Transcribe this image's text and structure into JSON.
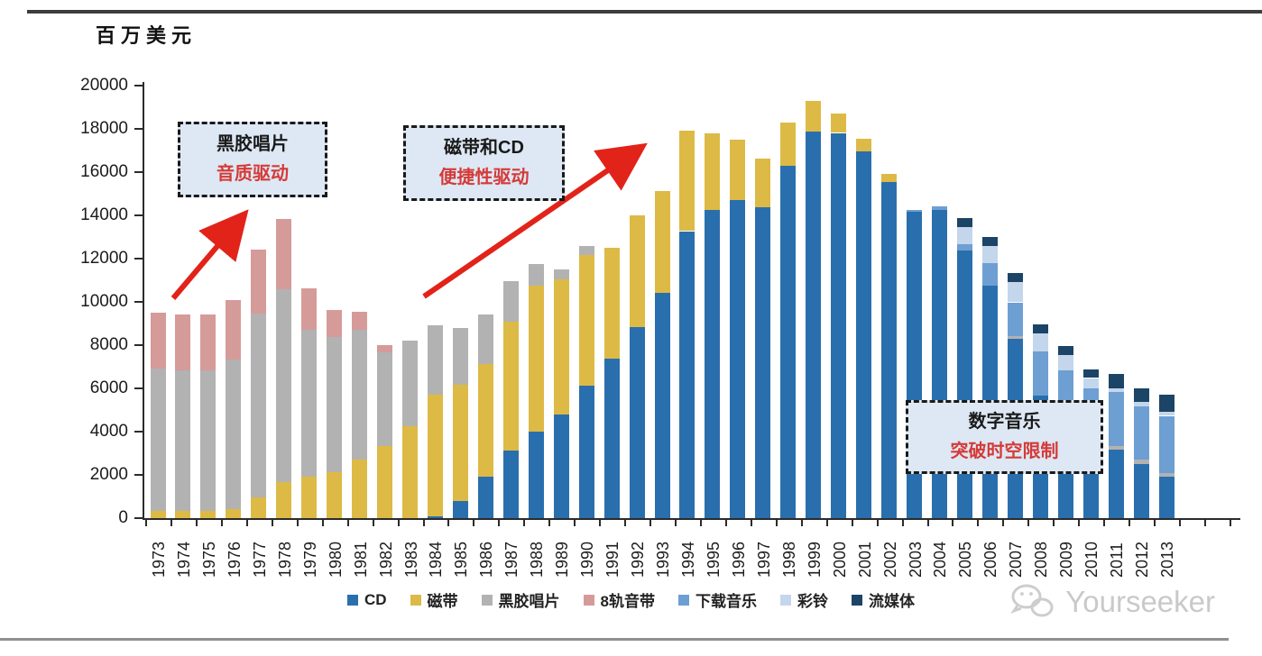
{
  "chart": {
    "unit_label": "百万美元",
    "annotations": [
      {
        "line1": "黑胶唱片",
        "line2": "音质驱动"
      },
      {
        "line1": "磁带和CD",
        "line2": "便捷性驱动"
      },
      {
        "line1": "数字音乐",
        "line2": "突破时空限制"
      }
    ],
    "watermark": "Yourseeker",
    "accent_red": "#e2231a",
    "annotation_bg": "#dde8f4"
  },
  "chart_data": {
    "type": "bar",
    "stacked": true,
    "title": "百万美元",
    "ylabel": "百万美元",
    "xlabel": "",
    "grid": false,
    "legend_position": "bottom",
    "ylim": [
      0,
      20000
    ],
    "ytick_step": 2000,
    "yticks": [
      0,
      2000,
      4000,
      6000,
      8000,
      10000,
      12000,
      14000,
      16000,
      18000,
      20000
    ],
    "categories": [
      1973,
      1974,
      1975,
      1976,
      1977,
      1978,
      1979,
      1980,
      1981,
      1982,
      1983,
      1984,
      1985,
      1986,
      1987,
      1988,
      1989,
      1990,
      1991,
      1992,
      1993,
      1994,
      1995,
      1996,
      1997,
      1998,
      1999,
      2000,
      2001,
      2002,
      2003,
      2004,
      2005,
      2006,
      2007,
      2008,
      2009,
      2010,
      2011,
      2012,
      2013
    ],
    "series": [
      {
        "name": "CD",
        "color": "#2a6fad",
        "values": [
          0,
          0,
          0,
          0,
          0,
          0,
          0,
          0,
          0,
          0,
          0,
          100,
          800,
          1930,
          3140,
          4020,
          4780,
          6120,
          7370,
          8840,
          10430,
          13270,
          14250,
          14710,
          14370,
          16300,
          17890,
          17810,
          16970,
          15550,
          14150,
          14240,
          12390,
          10740,
          8300,
          5650,
          4700,
          4000,
          3150,
          2500,
          1900
        ]
      },
      {
        "name": "磁带",
        "color": "#ddba45",
        "values": [
          350,
          350,
          350,
          420,
          950,
          1680,
          1930,
          2140,
          2720,
          3350,
          4270,
          5600,
          5360,
          5190,
          5950,
          6750,
          6280,
          6030,
          5130,
          5160,
          4680,
          4650,
          3550,
          2790,
          2260,
          2000,
          1400,
          880,
          590,
          370,
          0,
          0,
          0,
          0,
          0,
          0,
          0,
          0,
          0,
          0,
          0
        ]
      },
      {
        "name": "黑胶唱片",
        "color": "#b2b2b2",
        "values": [
          6550,
          6500,
          6500,
          6900,
          8520,
          8920,
          6780,
          6240,
          5990,
          4320,
          3940,
          3200,
          2640,
          2280,
          1890,
          1000,
          460,
          420,
          0,
          0,
          0,
          0,
          0,
          0,
          0,
          0,
          0,
          0,
          0,
          0,
          0,
          0,
          0,
          0,
          140,
          0,
          0,
          150,
          200,
          210,
          180
        ]
      },
      {
        "name": "8轨音带",
        "color": "#d59b99",
        "values": [
          2600,
          2550,
          2550,
          2780,
          2930,
          3230,
          1930,
          1260,
          840,
          340,
          0,
          0,
          0,
          0,
          0,
          0,
          0,
          0,
          0,
          0,
          0,
          0,
          0,
          0,
          0,
          0,
          0,
          0,
          0,
          0,
          0,
          0,
          0,
          0,
          0,
          0,
          0,
          0,
          0,
          0,
          0
        ]
      },
      {
        "name": "下载音乐",
        "color": "#6d9fd3",
        "values": [
          0,
          0,
          0,
          0,
          0,
          0,
          0,
          0,
          0,
          0,
          0,
          0,
          0,
          0,
          0,
          0,
          0,
          0,
          0,
          0,
          0,
          0,
          0,
          0,
          0,
          0,
          0,
          0,
          0,
          0,
          100,
          170,
          280,
          1050,
          1540,
          2050,
          2130,
          1870,
          2500,
          2470,
          2650
        ]
      },
      {
        "name": "彩铃",
        "color": "#c3d6ec",
        "values": [
          0,
          0,
          0,
          0,
          0,
          0,
          0,
          0,
          0,
          0,
          0,
          0,
          0,
          0,
          0,
          0,
          0,
          0,
          0,
          0,
          0,
          0,
          0,
          0,
          0,
          0,
          0,
          0,
          0,
          0,
          0,
          0,
          790,
          790,
          930,
          840,
          700,
          460,
          150,
          180,
          200
        ]
      },
      {
        "name": "流媒体",
        "color": "#1c4466",
        "values": [
          0,
          0,
          0,
          0,
          0,
          0,
          0,
          0,
          0,
          0,
          0,
          0,
          0,
          0,
          0,
          0,
          0,
          0,
          0,
          0,
          0,
          0,
          0,
          0,
          0,
          0,
          0,
          0,
          0,
          0,
          0,
          0,
          420,
          420,
          420,
          420,
          420,
          380,
          650,
          660,
          780
        ]
      }
    ]
  }
}
